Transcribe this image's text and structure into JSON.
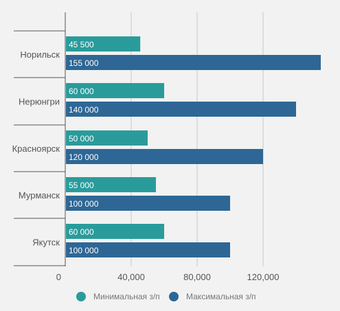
{
  "chart_data": {
    "type": "bar",
    "orientation": "horizontal",
    "categories": [
      "Норильск",
      "Нерюнгри",
      "Красноярск",
      "Мурманск",
      "Якутск"
    ],
    "series": [
      {
        "name": "Минимальная з/п",
        "values": [
          45500,
          60000,
          50000,
          55000,
          60000
        ],
        "labels": [
          "45 500",
          "60 000",
          "50 000",
          "55 000",
          "60 000"
        ],
        "color": "#2a9b9b"
      },
      {
        "name": "Максимальная з/п",
        "values": [
          155000,
          140000,
          120000,
          100000,
          100000
        ],
        "labels": [
          "155 000",
          "140 000",
          "120 000",
          "100 000",
          "100 000"
        ],
        "color": "#2e6795"
      }
    ],
    "xticks": [
      0,
      40000,
      80000,
      120000
    ],
    "xtick_labels": [
      "0",
      "40,000",
      "80,000",
      "120,000"
    ],
    "xlim": [
      0,
      155000
    ],
    "grid": true,
    "legend": "bottom"
  }
}
